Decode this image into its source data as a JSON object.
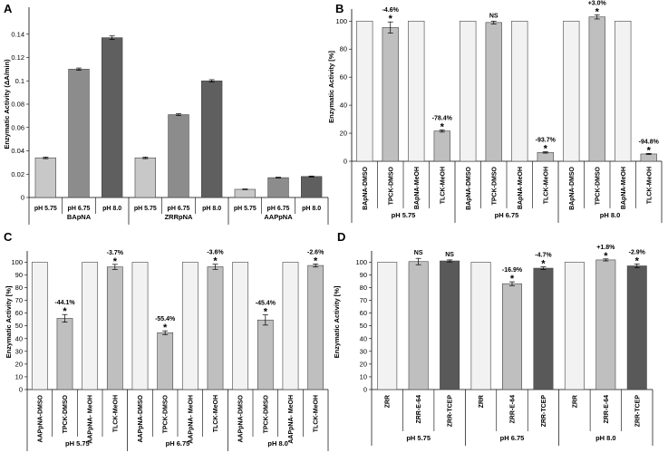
{
  "chart_data": [
    {
      "panel": "A",
      "type": "bar",
      "ylabel": "Enzymatic Activity (ΔA/min)",
      "ylim": [
        0,
        0.16
      ],
      "yticks": [
        0,
        0.02,
        0.04,
        0.06,
        0.08,
        0.1,
        0.12,
        0.14
      ],
      "ytick_labels": [
        "0",
        "0.02",
        "0.04",
        "0.06",
        "0.08",
        "0.1",
        "0.12",
        "0.14"
      ],
      "groups": [
        {
          "label": "BApNA",
          "categories": [
            "pH 5.75",
            "pH 6.75",
            "pH 8.0"
          ],
          "values": [
            0.034,
            0.11,
            0.137
          ],
          "errors": [
            0.0007,
            0.001,
            0.0015
          ],
          "colors": [
            "#c8c8c8",
            "#8c8c8c",
            "#5f5f5f"
          ],
          "annotations": [
            "",
            "",
            ""
          ]
        },
        {
          "label": "ZRRpNA",
          "categories": [
            "pH 5.75",
            "pH 6.75",
            "pH 8.0"
          ],
          "values": [
            0.034,
            0.071,
            0.1
          ],
          "errors": [
            0.0007,
            0.0008,
            0.001
          ],
          "colors": [
            "#c8c8c8",
            "#8c8c8c",
            "#5f5f5f"
          ],
          "annotations": [
            "",
            "",
            ""
          ]
        },
        {
          "label": "AAPpNA",
          "categories": [
            "pH 5.75",
            "pH 6.75",
            "pH 8.0"
          ],
          "values": [
            0.007,
            0.017,
            0.018
          ],
          "errors": [
            0.0003,
            0.0004,
            0.0004
          ],
          "colors": [
            "#c8c8c8",
            "#8c8c8c",
            "#5f5f5f"
          ],
          "annotations": [
            "",
            "",
            ""
          ]
        }
      ]
    },
    {
      "panel": "B",
      "type": "bar",
      "ylabel": "Enzymatic Activity [%]",
      "ylim": [
        0,
        106
      ],
      "yticks": [
        0,
        20,
        40,
        60,
        80,
        100
      ],
      "ytick_labels": [
        "0",
        "20",
        "40",
        "60",
        "80",
        "100"
      ],
      "groups": [
        {
          "label": "pH 5.75",
          "categories": [
            "BApNA-DMSO",
            "TPCK-DMSO",
            "BApNA-MeOH",
            "TLCK-MeOH"
          ],
          "values": [
            100,
            95.4,
            100,
            21.6
          ],
          "errors": [
            0,
            4,
            0,
            0.8
          ],
          "colors": [
            "#f2f2f2",
            "#bfbfbf",
            "#f2f2f2",
            "#bfbfbf"
          ],
          "annotations": [
            "",
            "-4.6%\n*",
            "",
            "-78.4%\n*"
          ]
        },
        {
          "label": "pH 6.75",
          "categories": [
            "BApNA-DMSO",
            "TPCK-DMSO",
            "BApNA-MeOH",
            "TLCK-MeOH"
          ],
          "values": [
            100,
            99,
            100,
            6.3
          ],
          "errors": [
            0,
            1,
            0,
            0.5
          ],
          "colors": [
            "#f2f2f2",
            "#bfbfbf",
            "#f2f2f2",
            "#bfbfbf"
          ],
          "annotations": [
            "",
            "NS",
            "",
            "-93.7%\n*"
          ]
        },
        {
          "label": "pH 8.0",
          "categories": [
            "BApNA-DMSO",
            "TPCK-DMSO",
            "BApNA-MeOH",
            "TLCK-MeOH"
          ],
          "values": [
            100,
            103,
            100,
            5.2
          ],
          "errors": [
            0,
            1.5,
            0,
            0.4
          ],
          "colors": [
            "#f2f2f2",
            "#bfbfbf",
            "#f2f2f2",
            "#bfbfbf"
          ],
          "annotations": [
            "",
            "+3.0%\n*",
            "",
            "-94.8%\n*"
          ]
        }
      ]
    },
    {
      "panel": "C",
      "type": "bar",
      "ylabel": "Enzymatic Activity [%]",
      "ylim": [
        0,
        106
      ],
      "yticks": [
        0,
        10,
        20,
        30,
        40,
        50,
        60,
        70,
        80,
        90,
        100
      ],
      "ytick_labels": [
        "0",
        "10",
        "20",
        "30",
        "40",
        "50",
        "60",
        "70",
        "80",
        "90",
        "100"
      ],
      "groups": [
        {
          "label": "pH 5.75",
          "categories": [
            "AAPpNA-DMSO",
            "TPCK-DMSO",
            "AAPpNA- MeOH",
            "TLCK-MeOH"
          ],
          "values": [
            100,
            55.9,
            100,
            96.3
          ],
          "errors": [
            0,
            3,
            0,
            2
          ],
          "colors": [
            "#f2f2f2",
            "#bfbfbf",
            "#f2f2f2",
            "#bfbfbf"
          ],
          "annotations": [
            "",
            "-44.1%\n*",
            "",
            "-3.7%\n*"
          ]
        },
        {
          "label": "pH 6.75",
          "categories": [
            "AAPpNA-DMSO",
            "TPCK-DMSO",
            "AAPpNA- MeOH",
            "TLCK-MeOH"
          ],
          "values": [
            100,
            44.6,
            100,
            96.4
          ],
          "errors": [
            0,
            1.5,
            0,
            2
          ],
          "colors": [
            "#f2f2f2",
            "#bfbfbf",
            "#f2f2f2",
            "#bfbfbf"
          ],
          "annotations": [
            "",
            "-55.4%\n*",
            "",
            "-3.6%\n*"
          ]
        },
        {
          "label": "pH 8.0",
          "categories": [
            "AAPpNA-DMSO",
            "TPCK-DMSO",
            "AAPpNA- MeOH",
            "TLCK-MeOH"
          ],
          "values": [
            100,
            54.6,
            100,
            97.4
          ],
          "errors": [
            0,
            4,
            0,
            1.2
          ],
          "colors": [
            "#f2f2f2",
            "#bfbfbf",
            "#f2f2f2",
            "#bfbfbf"
          ],
          "annotations": [
            "",
            "-45.4%\n*",
            "",
            "-2.6%\n*"
          ]
        }
      ]
    },
    {
      "panel": "D",
      "type": "bar",
      "ylabel": "Enzymatic Activity [%]",
      "ylim": [
        0,
        106
      ],
      "yticks": [
        0,
        10,
        20,
        30,
        40,
        50,
        60,
        70,
        80,
        90,
        100
      ],
      "ytick_labels": [
        "0",
        "10",
        "20",
        "30",
        "40",
        "50",
        "60",
        "70",
        "80",
        "90",
        "100"
      ],
      "groups": [
        {
          "label": "pH 5.75",
          "categories": [
            "ZRR",
            "ZRR-E-64",
            "ZRR-TCEP"
          ],
          "values": [
            100,
            100.5,
            101
          ],
          "errors": [
            0,
            2.5,
            0.8
          ],
          "colors": [
            "#f2f2f2",
            "#bfbfbf",
            "#595959"
          ],
          "annotations": [
            "",
            "NS",
            "NS"
          ]
        },
        {
          "label": "pH 6.75",
          "categories": [
            "ZRR",
            "ZRR-E-64",
            "ZRR-TCEP"
          ],
          "values": [
            100,
            83.1,
            95.3
          ],
          "errors": [
            0,
            1.5,
            1
          ],
          "colors": [
            "#f2f2f2",
            "#bfbfbf",
            "#595959"
          ],
          "annotations": [
            "",
            "-16.9%\n*",
            "-4.7%\n*"
          ]
        },
        {
          "label": "pH 8.0",
          "categories": [
            "ZRR",
            "ZRR-E-64",
            "ZRR-TCEP"
          ],
          "values": [
            100,
            101.8,
            97.1
          ],
          "errors": [
            0,
            0.8,
            1.5
          ],
          "colors": [
            "#f2f2f2",
            "#bfbfbf",
            "#595959"
          ],
          "annotations": [
            "",
            "+1.8%\n*",
            "-2.9%\n*"
          ]
        }
      ]
    }
  ]
}
